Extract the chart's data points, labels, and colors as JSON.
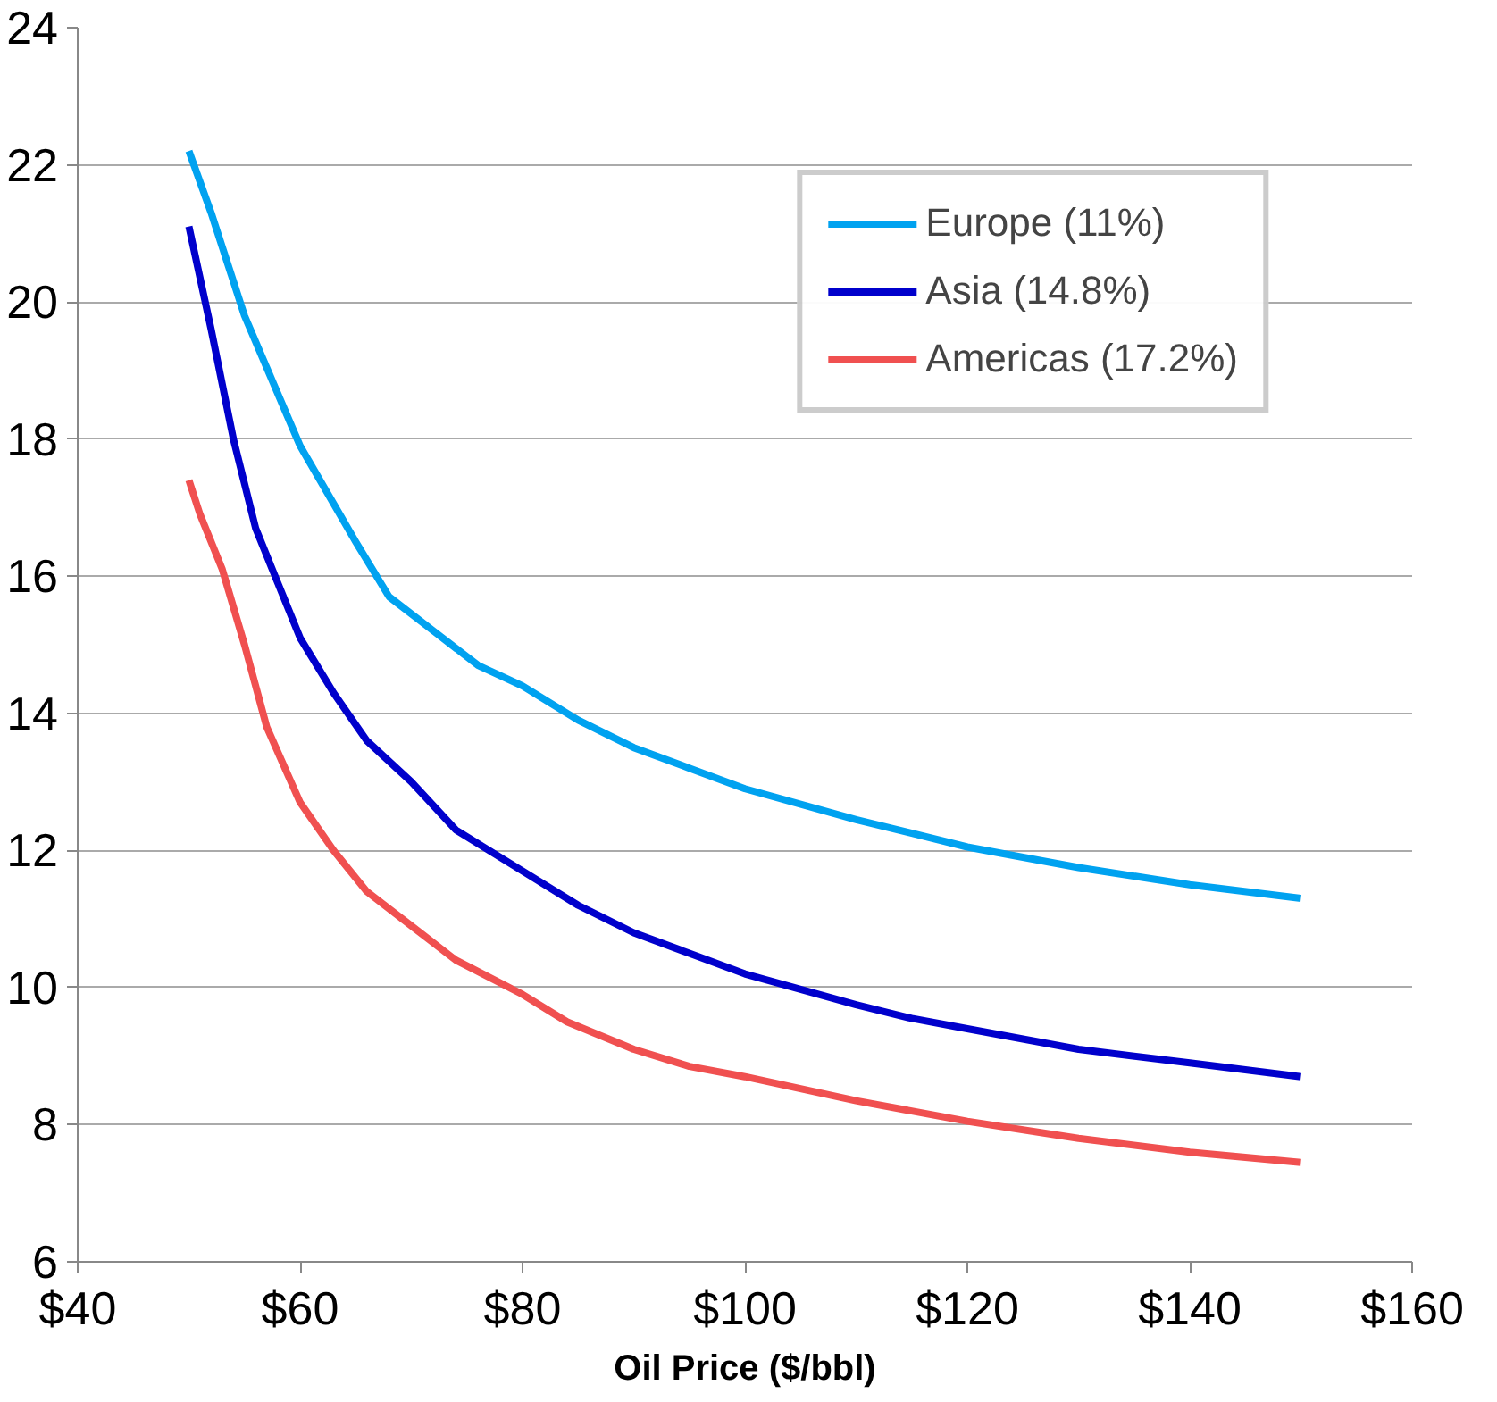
{
  "chart_data": {
    "type": "line",
    "xlabel": "Oil Price ($/bbl)",
    "xlim": [
      40,
      160
    ],
    "xticks": [
      {
        "value": 40,
        "label": "$40"
      },
      {
        "value": 60,
        "label": "$60"
      },
      {
        "value": 80,
        "label": "$80"
      },
      {
        "value": 100,
        "label": "$100"
      },
      {
        "value": 120,
        "label": "$120"
      },
      {
        "value": 140,
        "label": "$140"
      },
      {
        "value": 160,
        "label": "$160"
      }
    ],
    "ylim": [
      6,
      24
    ],
    "yticks": [
      6,
      8,
      10,
      12,
      14,
      16,
      18,
      20,
      22,
      24
    ],
    "grid": "y",
    "legend": "top right",
    "marker": "none",
    "line_style": "solid",
    "series": [
      {
        "name": "Europe (11%)",
        "color": "#00a2f0",
        "x": [
          50,
          52,
          55,
          60,
          65,
          68,
          72,
          76,
          80,
          85,
          90,
          95,
          100,
          110,
          120,
          130,
          140,
          150
        ],
        "values": [
          22.2,
          21.3,
          19.8,
          17.9,
          16.5,
          15.7,
          15.2,
          14.7,
          14.4,
          13.9,
          13.5,
          13.2,
          12.9,
          12.45,
          12.05,
          11.75,
          11.5,
          11.3
        ]
      },
      {
        "name": "Asia (14.8%)",
        "color": "#0000cc",
        "x": [
          50,
          52,
          54,
          56,
          58,
          60,
          63,
          66,
          70,
          74,
          80,
          85,
          90,
          95,
          100,
          110,
          115,
          120,
          130,
          140,
          150
        ],
        "values": [
          21.1,
          19.6,
          18.0,
          16.7,
          15.9,
          15.1,
          14.3,
          13.6,
          13.0,
          12.3,
          11.7,
          11.2,
          10.8,
          10.5,
          10.2,
          9.75,
          9.55,
          9.4,
          9.1,
          8.9,
          8.7
        ]
      },
      {
        "name": "Americas (17.2%)",
        "color": "#f05050",
        "x": [
          50,
          51,
          53,
          55,
          57,
          60,
          63,
          66,
          70,
          74,
          80,
          84,
          90,
          95,
          100,
          110,
          120,
          130,
          140,
          150
        ],
        "values": [
          17.4,
          16.9,
          16.1,
          15.0,
          13.8,
          12.7,
          12.0,
          11.4,
          10.9,
          10.4,
          9.9,
          9.5,
          9.1,
          8.85,
          8.7,
          8.35,
          8.05,
          7.8,
          7.6,
          7.45
        ]
      }
    ]
  }
}
